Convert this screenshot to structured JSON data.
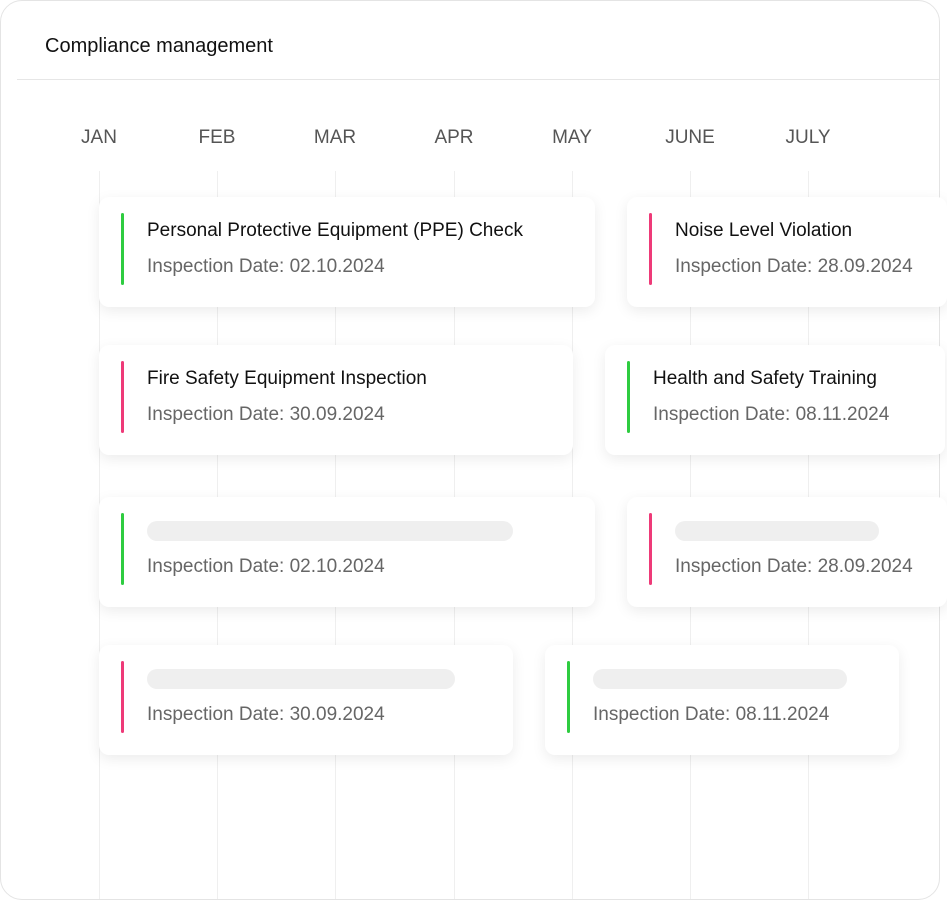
{
  "header": {
    "title": "Compliance management"
  },
  "months": [
    "JAN",
    "FEB",
    "MAR",
    "APR",
    "MAY",
    "JUNE",
    "JULY"
  ],
  "cards": [
    {
      "title": "Personal Protective Equipment (PPE) Check",
      "date": "Inspection Date: 02.10.2024",
      "color": "#2ecc40"
    },
    {
      "title": "Noise Level Violation",
      "date": "Inspection Date: 28.09.2024",
      "color": "#ee3a78"
    },
    {
      "title": "Fire Safety Equipment Inspection",
      "date": "Inspection Date: 30.09.2024",
      "color": "#ee3a78"
    },
    {
      "title": "Health and Safety Training",
      "date": "Inspection Date: 08.11.2024",
      "color": "#2ecc40"
    },
    {
      "date": "Inspection Date: 02.10.2024",
      "color": "#2ecc40"
    },
    {
      "date": "Inspection Date: 28.09.2024",
      "color": "#ee3a78"
    },
    {
      "date": "Inspection Date: 30.09.2024",
      "color": "#ee3a78"
    },
    {
      "date": "Inspection Date: 08.11.2024",
      "color": "#2ecc40"
    }
  ]
}
